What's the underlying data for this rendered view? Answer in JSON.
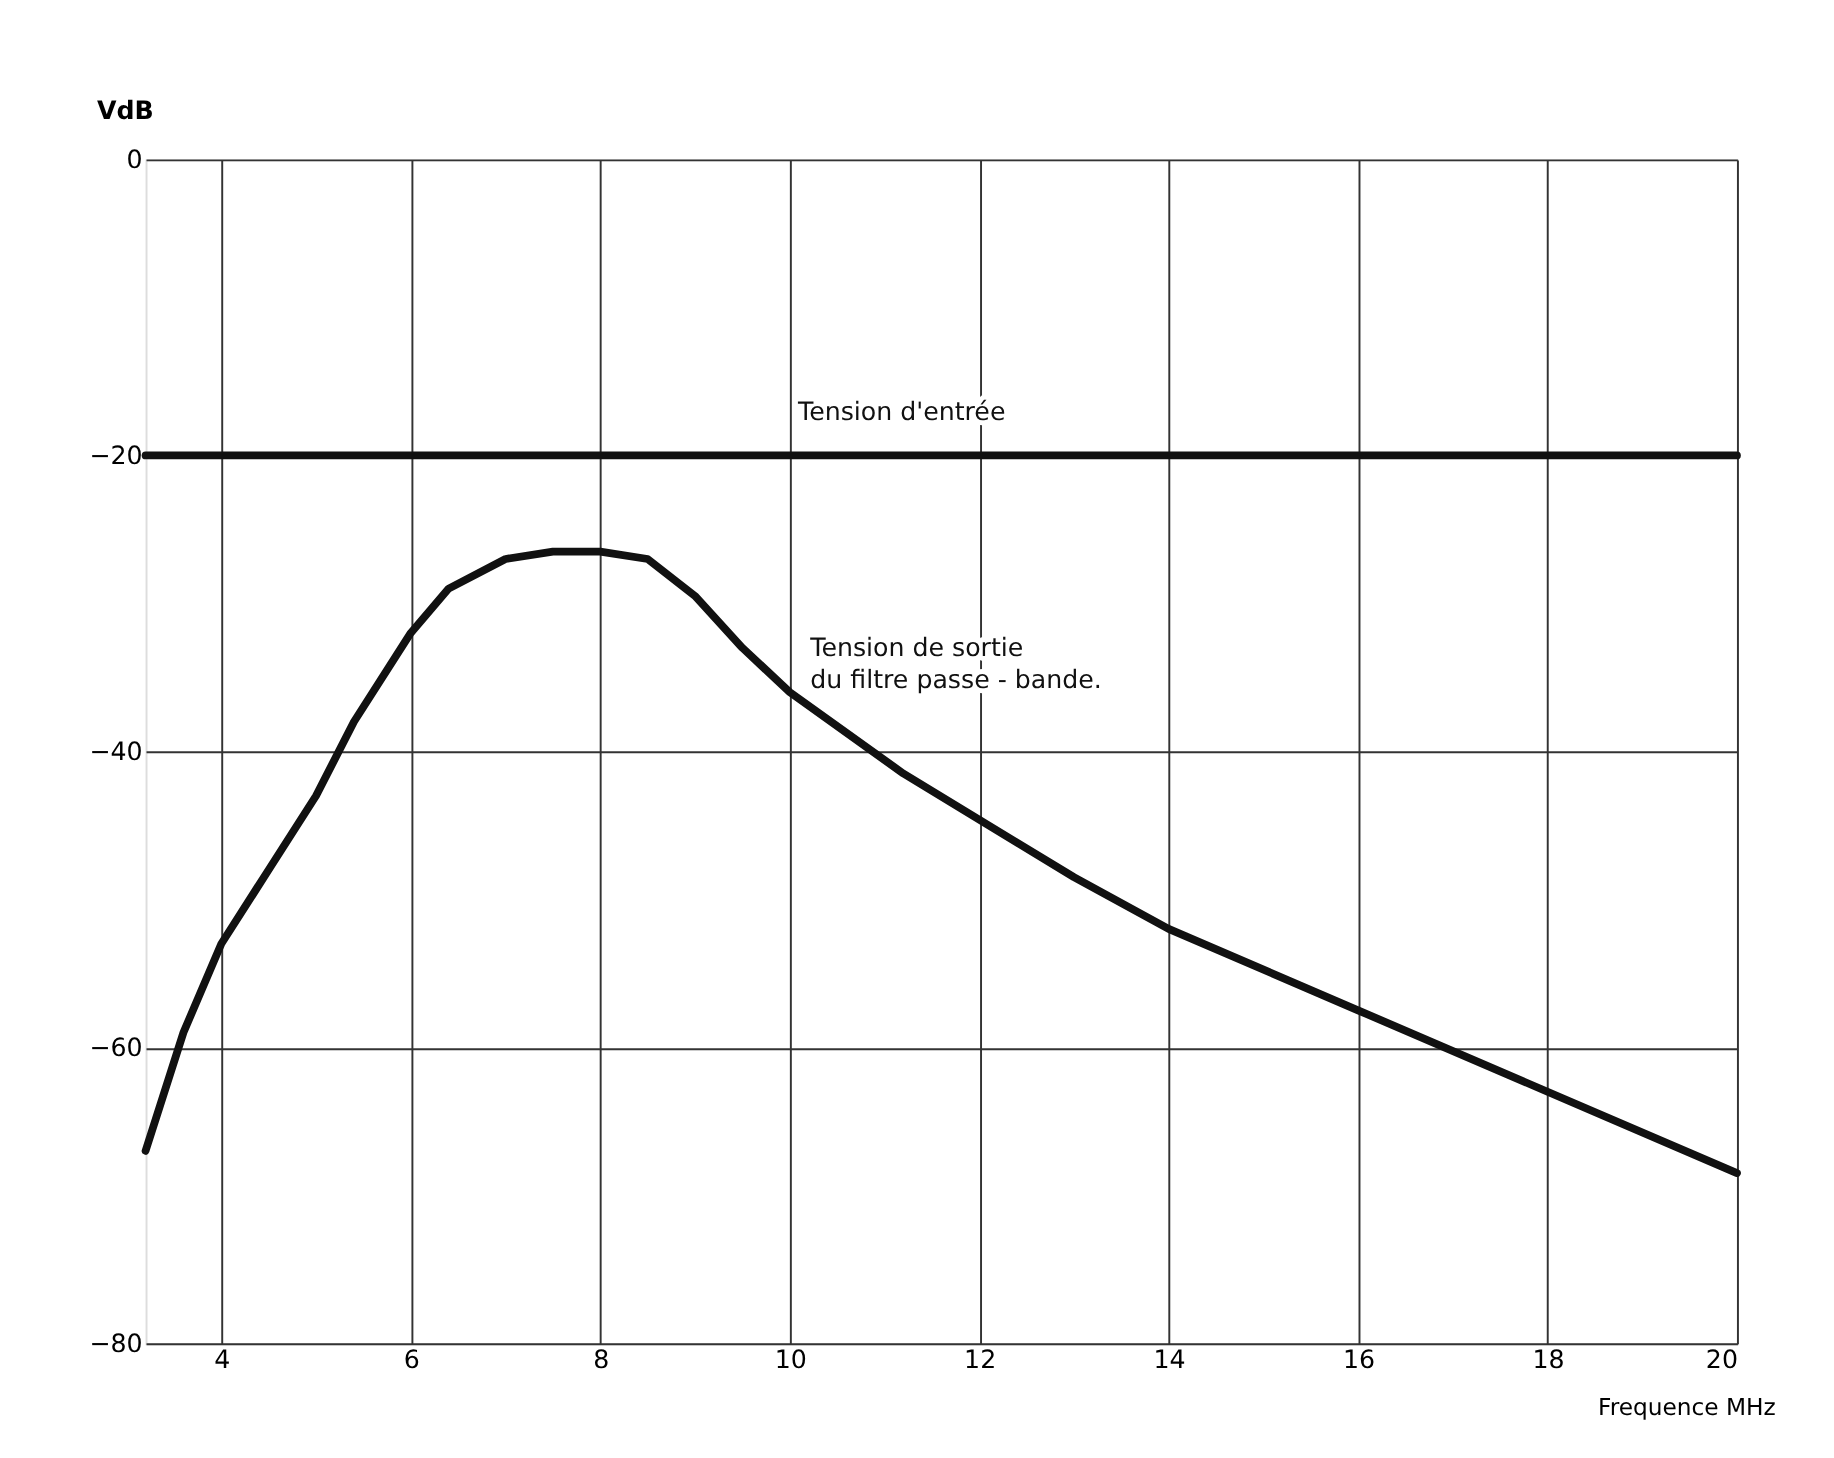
{
  "chart_data": {
    "type": "line",
    "xlabel": "Frequence MHz",
    "ylabel": "VdB",
    "series": [
      {
        "name": "Tension d'entrée",
        "color": "#111111",
        "x": [
          3.2,
          20
        ],
        "values": [
          -20,
          -20
        ]
      },
      {
        "name": "Tension de sortie\ndu filtre passe - bande.",
        "color": "#111111",
        "x": [
          3.2,
          3.6,
          4.0,
          4.5,
          5.0,
          5.4,
          6.0,
          6.4,
          7.0,
          7.5,
          8.0,
          8.5,
          9.0,
          9.5,
          10.0,
          11.2,
          13.0,
          14.0,
          16.0,
          18.0,
          20.0
        ],
        "values": [
          -67,
          -59,
          -53,
          -48,
          -43,
          -38,
          -32,
          -29,
          -27,
          -26.5,
          -26.5,
          -27,
          -29.5,
          -33,
          -36,
          -41.5,
          -48.5,
          -52,
          -57.5,
          -63,
          -68.5
        ]
      }
    ],
    "xlim": [
      3.2,
      20
    ],
    "xticks": [
      4,
      6,
      8,
      10,
      12,
      14,
      16,
      18,
      20
    ],
    "ylim": [
      -80,
      0
    ],
    "yticks": [
      0,
      -20,
      -40,
      -60,
      -80
    ],
    "grid": true,
    "marker": "none",
    "line_style": "solid"
  }
}
